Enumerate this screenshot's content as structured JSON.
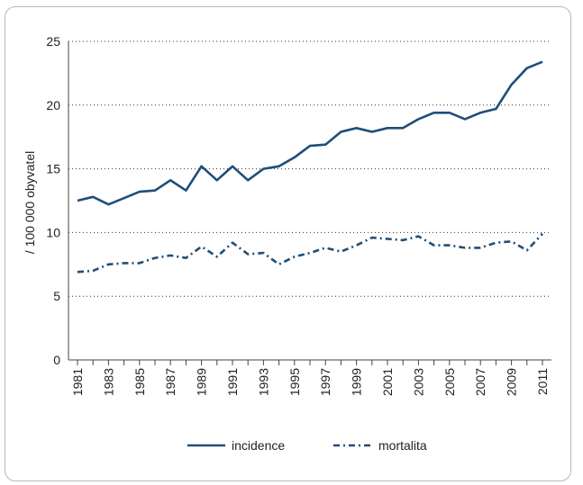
{
  "chart_data": {
    "type": "line",
    "ylabel": "/ 100 000 obyvatel",
    "xlabel": "",
    "ylim": [
      0,
      25
    ],
    "yticks": [
      0,
      5,
      10,
      15,
      20,
      25
    ],
    "x": [
      1981,
      1982,
      1983,
      1984,
      1985,
      1986,
      1987,
      1988,
      1989,
      1990,
      1991,
      1992,
      1993,
      1994,
      1995,
      1996,
      1997,
      1998,
      1999,
      2000,
      2001,
      2002,
      2003,
      2004,
      2005,
      2006,
      2007,
      2008,
      2009,
      2010,
      2011
    ],
    "xtick_labels": [
      "1981",
      "1983",
      "1985",
      "1987",
      "1989",
      "1991",
      "1993",
      "1995",
      "1997",
      "1999",
      "2001",
      "2003",
      "2005",
      "2007",
      "2009",
      "2011"
    ],
    "grid": "horizontal dotted",
    "legend_position": "bottom",
    "series": [
      {
        "name": "incidence",
        "style": "solid",
        "color": "#1f4e79",
        "values": [
          12.5,
          12.8,
          12.2,
          12.7,
          13.2,
          13.3,
          14.1,
          13.3,
          15.2,
          14.1,
          15.2,
          14.1,
          15.0,
          15.2,
          15.9,
          16.8,
          16.9,
          17.9,
          18.2,
          17.9,
          18.2,
          18.2,
          18.9,
          19.4,
          19.4,
          18.9,
          19.4,
          19.7,
          21.6,
          22.9,
          23.4
        ]
      },
      {
        "name": "mortalita",
        "style": "dashed",
        "color": "#1f4e79",
        "values": [
          6.9,
          7.0,
          7.5,
          7.6,
          7.6,
          8.0,
          8.2,
          8.0,
          8.9,
          8.1,
          9.2,
          8.3,
          8.4,
          7.5,
          8.1,
          8.4,
          8.8,
          8.5,
          9.0,
          9.6,
          9.5,
          9.4,
          9.7,
          9.0,
          9.0,
          8.8,
          8.8,
          9.2,
          9.3,
          8.6,
          9.9
        ]
      }
    ]
  }
}
